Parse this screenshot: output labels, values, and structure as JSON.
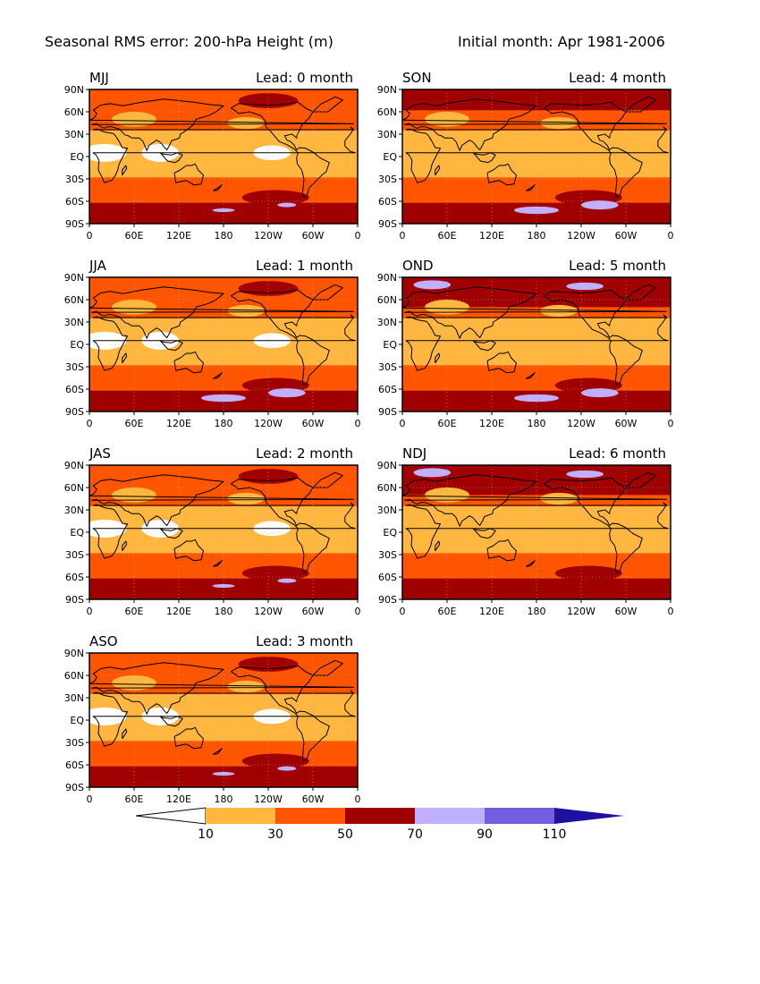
{
  "title": {
    "left": "Seasonal RMS error: 200-hPa Height (m)",
    "right": "Initial month: Apr 1981-2006"
  },
  "axes": {
    "lon_ticks": [
      "0",
      "60E",
      "120E",
      "180",
      "120W",
      "60W",
      "0"
    ],
    "lat_ticks": [
      "90N",
      "60N",
      "30N",
      "EQ",
      "30S",
      "60S",
      "90S"
    ],
    "lon_range_deg": [
      0,
      360
    ],
    "lat_range_deg": [
      -90,
      90
    ]
  },
  "panels": [
    {
      "season": "MJJ",
      "lead": "Lead: 0 month"
    },
    {
      "season": "SON",
      "lead": "Lead: 4 month"
    },
    {
      "season": "JJA",
      "lead": "Lead: 1 month"
    },
    {
      "season": "OND",
      "lead": "Lead: 5 month"
    },
    {
      "season": "JAS",
      "lead": "Lead: 2 month"
    },
    {
      "season": "NDJ",
      "lead": "Lead: 6 month"
    },
    {
      "season": "ASO",
      "lead": "Lead: 3 month"
    }
  ],
  "colorbar": {
    "labels": [
      "10",
      "30",
      "50",
      "70",
      "90",
      "110"
    ],
    "colors": [
      "#ffffff",
      "#ffb740",
      "#ff5400",
      "#a00000",
      "#c0b0ff",
      "#7060e0",
      "#2010a0"
    ]
  }
}
